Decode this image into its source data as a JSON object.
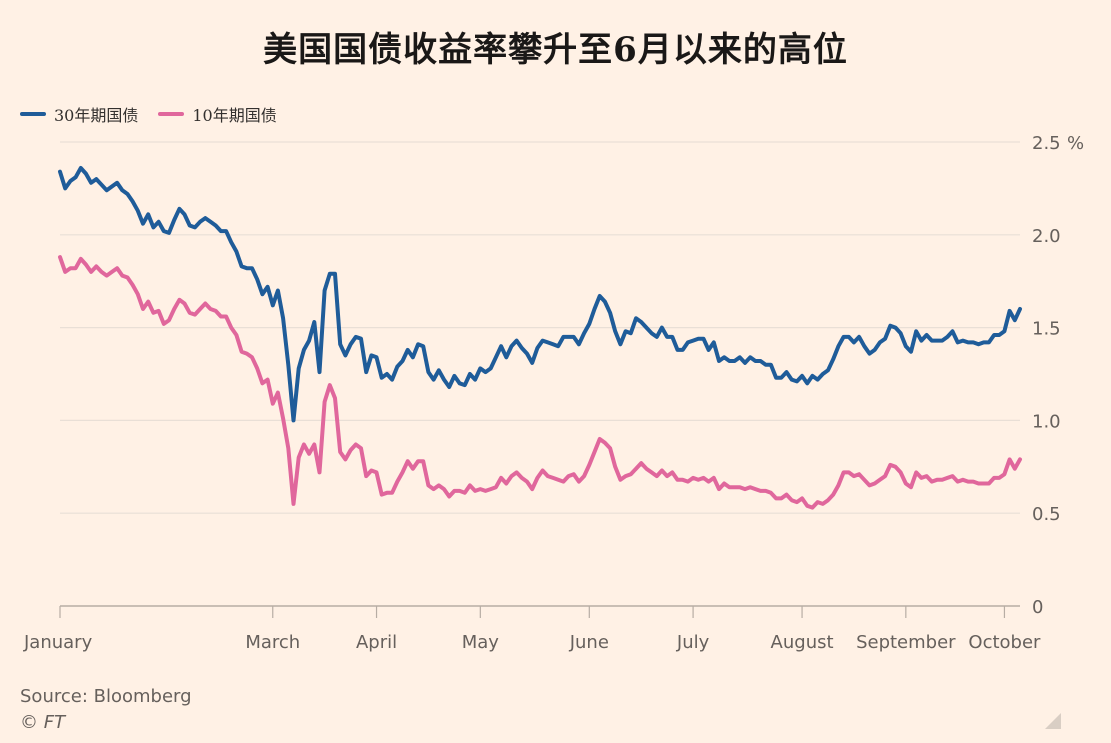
{
  "chart_data": {
    "type": "line",
    "title": "美国国债收益率攀升至6月以来的高位",
    "y_unit": "%",
    "ylim": [
      0,
      2.5
    ],
    "y_ticks": [
      {
        "value": 0,
        "label": "0"
      },
      {
        "value": 0.5,
        "label": "0.5"
      },
      {
        "value": 1.0,
        "label": "1.0"
      },
      {
        "value": 1.5,
        "label": "1.5"
      },
      {
        "value": 2.0,
        "label": "2.0"
      },
      {
        "value": 2.5,
        "label": "2.5"
      }
    ],
    "x_ticks": [
      "January",
      "March",
      "April",
      "May",
      "June",
      "July",
      "August",
      "September",
      "October"
    ],
    "grid": "horizontal",
    "legend_position": "top-left",
    "series": [
      {
        "name": "30年期国债",
        "color": "#1f5c99",
        "values": [
          2.34,
          2.25,
          2.29,
          2.31,
          2.36,
          2.33,
          2.28,
          2.3,
          2.27,
          2.24,
          2.26,
          2.28,
          2.24,
          2.22,
          2.18,
          2.13,
          2.06,
          2.11,
          2.04,
          2.07,
          2.02,
          2.01,
          2.08,
          2.14,
          2.11,
          2.05,
          2.04,
          2.07,
          2.09,
          2.07,
          2.05,
          2.02,
          2.02,
          1.96,
          1.91,
          1.83,
          1.82,
          1.82,
          1.76,
          1.68,
          1.72,
          1.62,
          1.7,
          1.55,
          1.3,
          1.0,
          1.28,
          1.38,
          1.43,
          1.53,
          1.26,
          1.7,
          1.79,
          1.79,
          1.41,
          1.35,
          1.41,
          1.45,
          1.44,
          1.26,
          1.35,
          1.34,
          1.23,
          1.25,
          1.22,
          1.29,
          1.32,
          1.38,
          1.34,
          1.41,
          1.4,
          1.26,
          1.22,
          1.27,
          1.22,
          1.18,
          1.24,
          1.2,
          1.19,
          1.25,
          1.22,
          1.28,
          1.26,
          1.28,
          1.34,
          1.4,
          1.34,
          1.4,
          1.43,
          1.39,
          1.36,
          1.31,
          1.39,
          1.43,
          1.42,
          1.41,
          1.4,
          1.45,
          1.45,
          1.45,
          1.41,
          1.47,
          1.52,
          1.6,
          1.67,
          1.64,
          1.58,
          1.48,
          1.41,
          1.48,
          1.47,
          1.55,
          1.53,
          1.5,
          1.47,
          1.45,
          1.5,
          1.45,
          1.45,
          1.38,
          1.38,
          1.42,
          1.43,
          1.44,
          1.44,
          1.38,
          1.42,
          1.32,
          1.34,
          1.32,
          1.32,
          1.34,
          1.31,
          1.34,
          1.32,
          1.32,
          1.3,
          1.3,
          1.23,
          1.23,
          1.26,
          1.22,
          1.21,
          1.24,
          1.2,
          1.24,
          1.22,
          1.25,
          1.27,
          1.33,
          1.4,
          1.45,
          1.45,
          1.42,
          1.45,
          1.4,
          1.36,
          1.38,
          1.42,
          1.44,
          1.51,
          1.5,
          1.47,
          1.4,
          1.37,
          1.48,
          1.43,
          1.46,
          1.43,
          1.43,
          1.43,
          1.45,
          1.48,
          1.42,
          1.43,
          1.42,
          1.42,
          1.41,
          1.42,
          1.42,
          1.46,
          1.46,
          1.48,
          1.59,
          1.54,
          1.6
        ]
      },
      {
        "name": "10年期国债",
        "color": "#e0679c",
        "values": [
          1.88,
          1.8,
          1.82,
          1.82,
          1.87,
          1.84,
          1.8,
          1.83,
          1.8,
          1.78,
          1.8,
          1.82,
          1.78,
          1.77,
          1.73,
          1.68,
          1.6,
          1.64,
          1.58,
          1.59,
          1.52,
          1.54,
          1.6,
          1.65,
          1.63,
          1.58,
          1.57,
          1.6,
          1.63,
          1.6,
          1.59,
          1.56,
          1.56,
          1.5,
          1.46,
          1.37,
          1.36,
          1.34,
          1.28,
          1.2,
          1.22,
          1.09,
          1.15,
          1.01,
          0.85,
          0.55,
          0.8,
          0.87,
          0.82,
          0.87,
          0.72,
          1.1,
          1.19,
          1.12,
          0.83,
          0.79,
          0.84,
          0.87,
          0.85,
          0.7,
          0.73,
          0.72,
          0.6,
          0.61,
          0.61,
          0.67,
          0.72,
          0.78,
          0.74,
          0.78,
          0.78,
          0.65,
          0.63,
          0.65,
          0.63,
          0.59,
          0.62,
          0.62,
          0.61,
          0.65,
          0.62,
          0.63,
          0.62,
          0.63,
          0.64,
          0.69,
          0.66,
          0.7,
          0.72,
          0.69,
          0.67,
          0.63,
          0.69,
          0.73,
          0.7,
          0.69,
          0.68,
          0.67,
          0.7,
          0.71,
          0.67,
          0.7,
          0.76,
          0.83,
          0.9,
          0.88,
          0.85,
          0.75,
          0.68,
          0.7,
          0.71,
          0.74,
          0.77,
          0.74,
          0.72,
          0.7,
          0.73,
          0.7,
          0.72,
          0.68,
          0.68,
          0.67,
          0.69,
          0.68,
          0.69,
          0.67,
          0.69,
          0.63,
          0.66,
          0.64,
          0.64,
          0.64,
          0.63,
          0.64,
          0.63,
          0.62,
          0.62,
          0.61,
          0.58,
          0.58,
          0.6,
          0.57,
          0.56,
          0.58,
          0.54,
          0.53,
          0.56,
          0.55,
          0.57,
          0.6,
          0.65,
          0.72,
          0.72,
          0.7,
          0.71,
          0.68,
          0.65,
          0.66,
          0.68,
          0.7,
          0.76,
          0.75,
          0.72,
          0.66,
          0.64,
          0.72,
          0.69,
          0.7,
          0.67,
          0.68,
          0.68,
          0.69,
          0.7,
          0.67,
          0.68,
          0.67,
          0.67,
          0.66,
          0.66,
          0.66,
          0.69,
          0.69,
          0.71,
          0.79,
          0.74,
          0.79
        ]
      }
    ]
  },
  "footer": {
    "source": "Source: Bloomberg",
    "copyright": "© FT"
  },
  "style": {
    "background": "#fff1e5",
    "grid_color": "#e9dfd6",
    "axis_color": "#b7ada4"
  }
}
